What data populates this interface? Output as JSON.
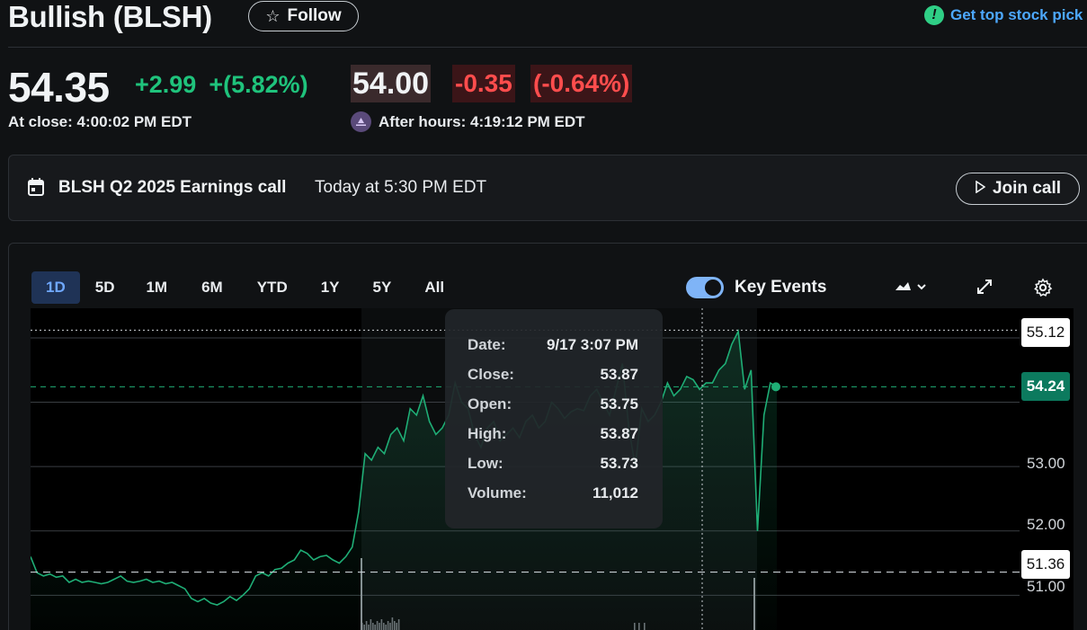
{
  "header": {
    "title": "Bullish (BLSH)",
    "follow_label": "Follow",
    "promo_text": "Get top stock pick"
  },
  "quote": {
    "price": "54.35",
    "change": "+2.99",
    "change_pct": "+(5.82%)",
    "close_label": "At close: 4:00:02 PM EDT",
    "after_price": "54.00",
    "after_change": "-0.35",
    "after_change_pct": "(-0.64%)",
    "after_label": "After hours: 4:19:12 PM EDT"
  },
  "earnings": {
    "title": "BLSH Q2 2025 Earnings call",
    "time": "Today at 5:30 PM EDT",
    "join_label": "Join call"
  },
  "chart_controls": {
    "ranges": [
      "1D",
      "5D",
      "1M",
      "6M",
      "YTD",
      "1Y",
      "5Y",
      "All"
    ],
    "active_range": "1D",
    "key_events_label": "Key Events",
    "key_events_on": true
  },
  "tooltip": {
    "date_label": "Date:",
    "date": "9/17 3:07 PM",
    "close_label": "Close:",
    "close": "53.87",
    "open_label": "Open:",
    "open": "53.75",
    "high_label": "High:",
    "high": "53.87",
    "low_label": "Low:",
    "low": "53.73",
    "volume_label": "Volume:",
    "volume": "11,012"
  },
  "axis": {
    "y_ticks": [
      "53.00",
      "52.00",
      "51.00"
    ],
    "pill_high": "55.12",
    "pill_current": "54.24",
    "pill_prev_close": "51.36"
  },
  "colors": {
    "up": "#1fc37c",
    "down": "#ff4d4d",
    "accent": "#4da8ff"
  },
  "chart_data": {
    "type": "line",
    "title": "",
    "xlabel": "",
    "ylabel": "",
    "ylim": [
      50.7,
      55.5
    ],
    "series": [
      {
        "values": [
          51.6,
          51.35,
          51.3,
          51.33,
          51.28,
          51.3,
          51.2,
          51.25,
          51.2,
          51.22,
          51.2,
          51.18,
          51.2,
          51.25,
          51.3,
          51.22,
          51.2,
          51.22,
          51.25,
          51.2,
          51.22,
          51.18,
          51.2,
          51.15,
          51.1,
          50.95,
          50.9,
          50.95,
          50.88,
          50.85,
          50.9,
          50.98,
          50.92,
          51.0,
          51.1,
          51.3,
          51.35,
          51.3,
          51.4,
          51.42,
          51.5,
          51.55,
          51.7,
          51.65,
          51.55,
          51.6,
          51.62,
          51.55,
          51.5,
          51.6,
          51.75,
          52.3,
          53.2,
          53.1,
          53.3,
          53.2,
          53.5,
          53.6,
          53.4,
          53.9,
          53.8,
          54.1,
          53.7,
          53.5,
          53.6,
          53.8,
          54.3,
          54.0,
          53.9,
          53.5,
          53.3,
          53.6,
          53.7,
          53.4,
          53.5,
          53.6,
          53.45,
          53.7,
          53.8,
          53.6,
          53.7,
          54.0,
          53.9,
          53.75,
          53.85,
          53.9,
          53.87,
          54.1,
          54.2,
          54.0,
          53.8,
          54.2,
          54.6,
          53.6,
          53.0,
          53.9,
          53.7,
          53.8,
          54.0,
          54.3,
          54.1,
          54.2,
          54.4,
          54.35,
          54.2,
          54.3,
          54.3,
          54.5,
          54.6,
          54.9,
          55.1,
          54.2,
          54.5,
          52.0,
          53.8,
          54.3,
          54.24
        ]
      }
    ],
    "reference_lines": {
      "prev_close": 51.36,
      "high": 55.12,
      "current": 54.24
    },
    "grid": true,
    "legend": "none"
  }
}
